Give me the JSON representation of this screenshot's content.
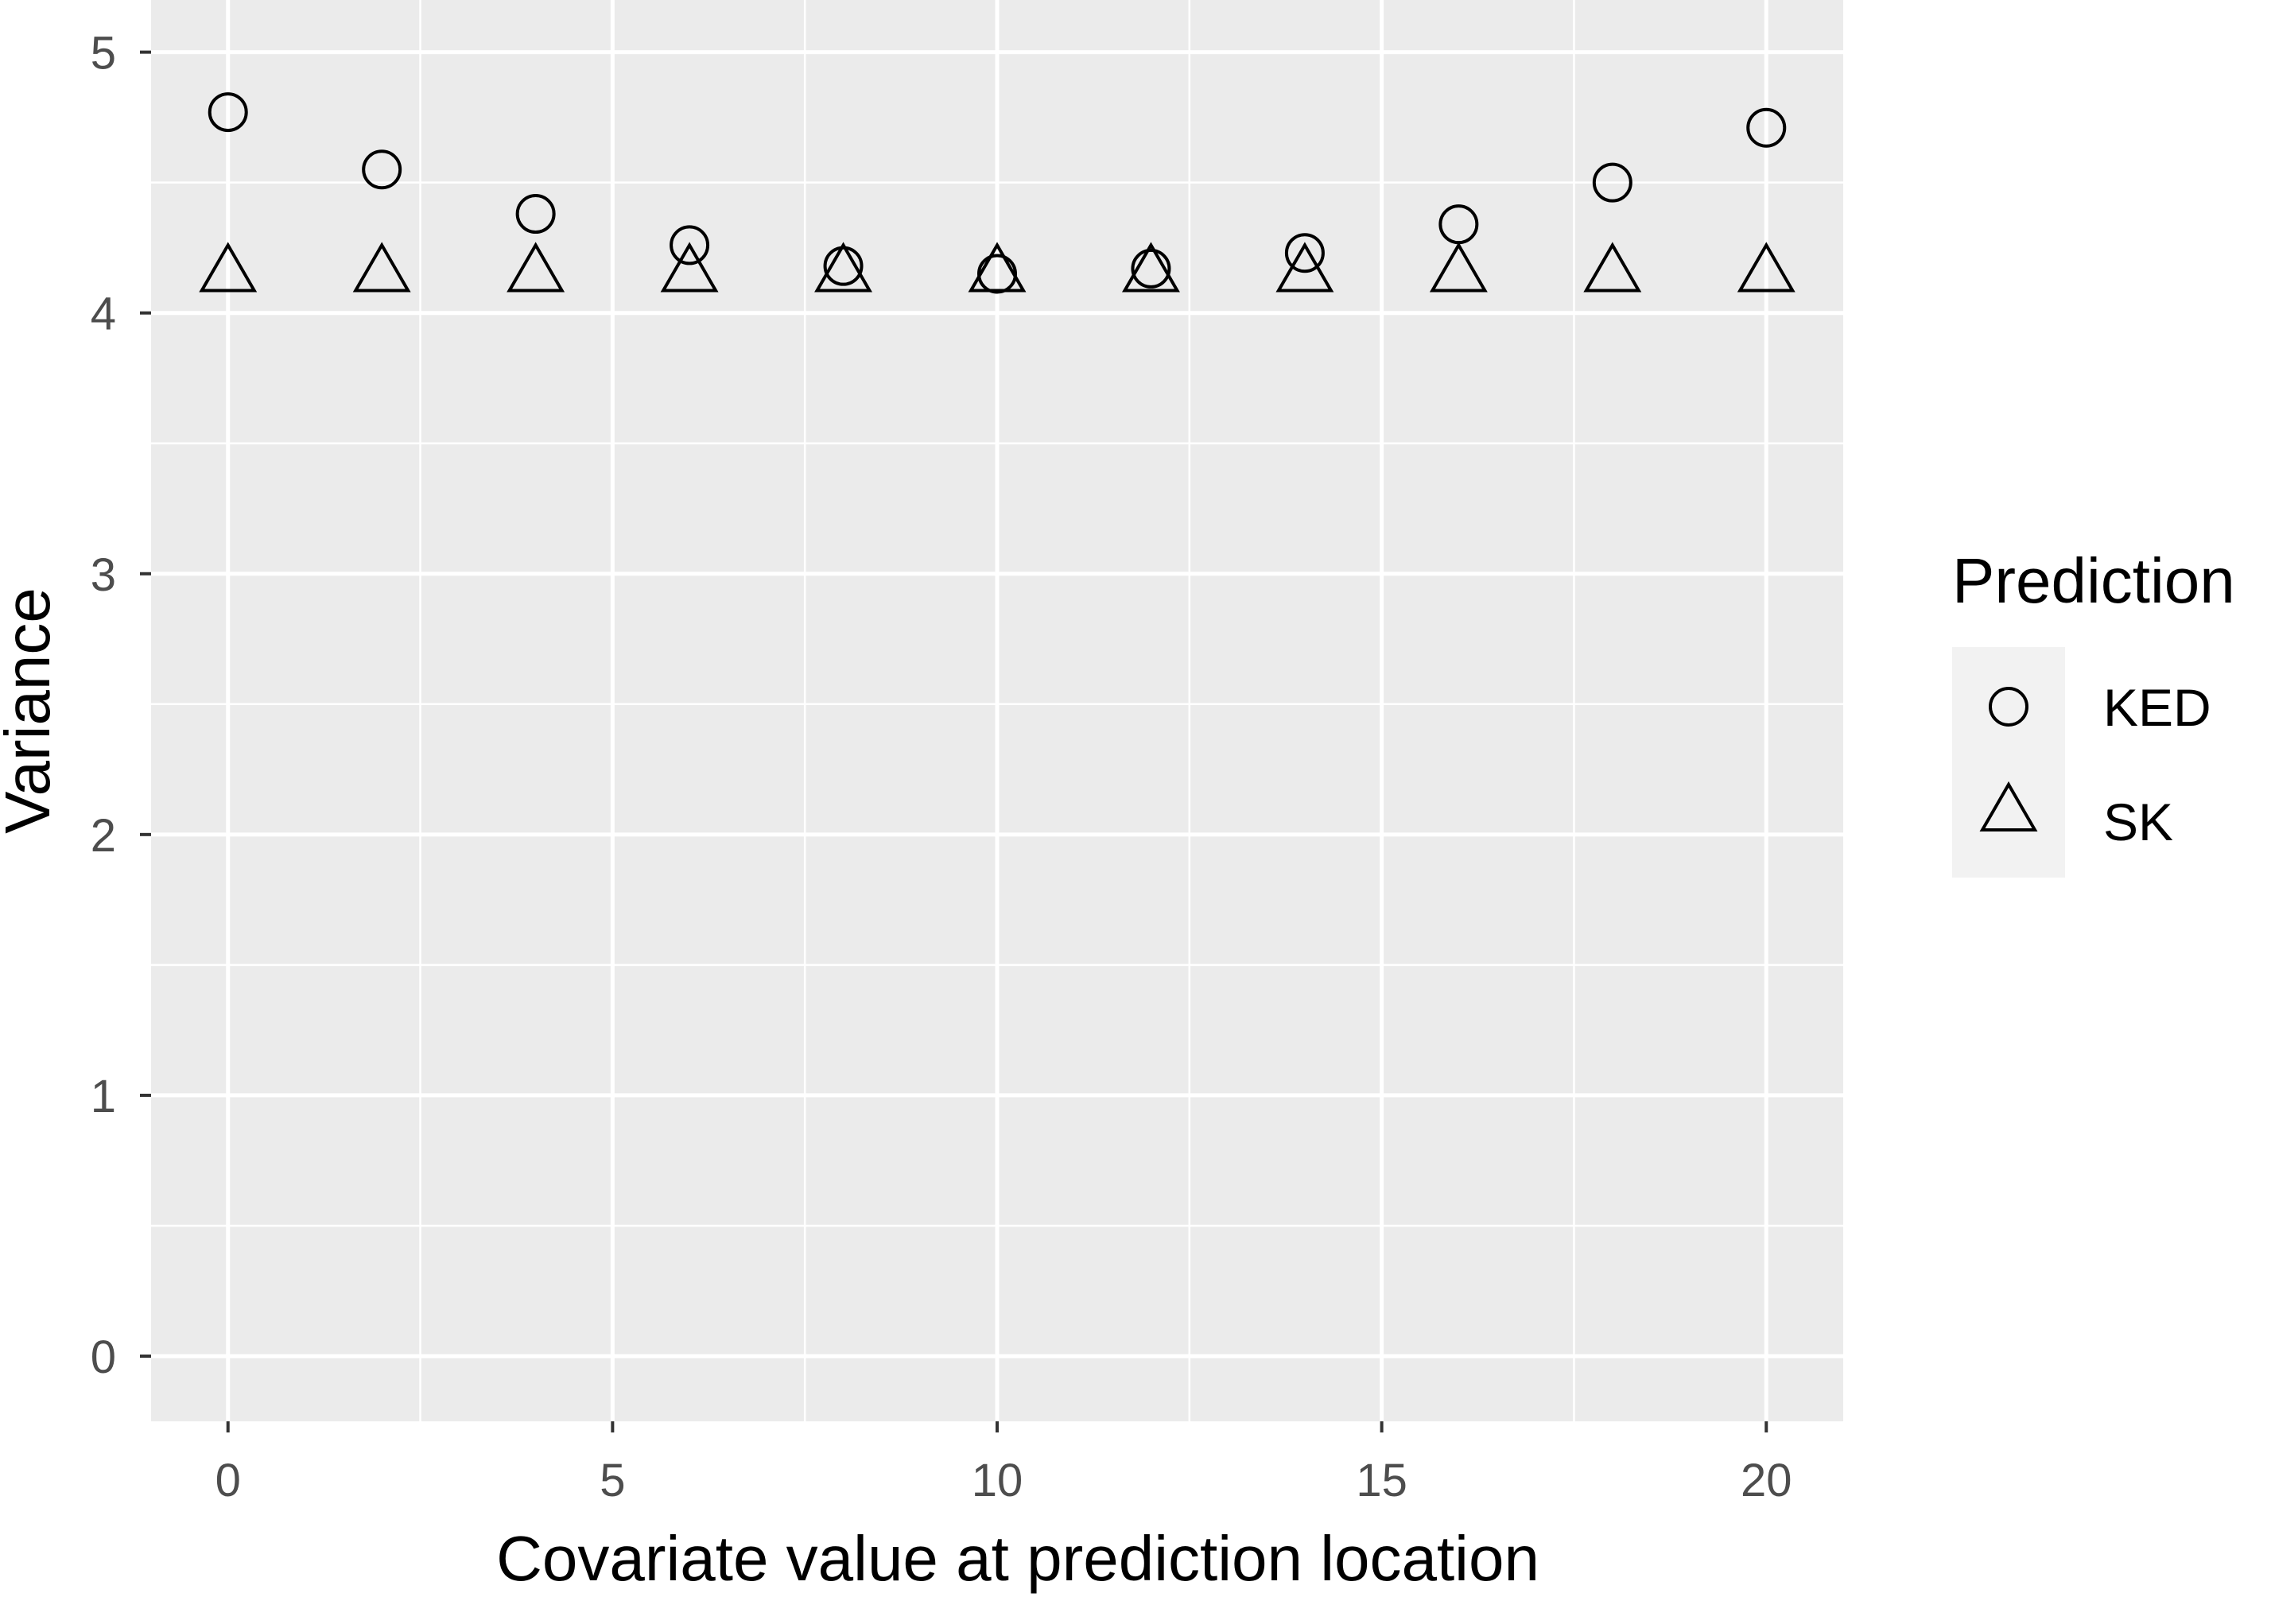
{
  "chart_data": {
    "type": "scatter",
    "title": "",
    "xlabel": "Covariate value at prediction location",
    "ylabel": "Variance",
    "xlim": [
      -1,
      21
    ],
    "ylim": [
      -0.25,
      5.2
    ],
    "x_ticks": [
      0,
      5,
      10,
      15,
      20
    ],
    "x_tick_labels": [
      "0",
      "5",
      "10",
      "15",
      "20"
    ],
    "y_ticks": [
      0,
      1,
      2,
      3,
      4,
      5
    ],
    "y_tick_labels": [
      "0",
      "1",
      "2",
      "3",
      "4",
      "5"
    ],
    "grid": true,
    "legend": {
      "title": "Prediction",
      "placement": "right"
    },
    "x": [
      0,
      2,
      4,
      6,
      8,
      10,
      12,
      14,
      16,
      18,
      20
    ],
    "series": [
      {
        "name": "KED",
        "shape": "circle",
        "values": [
          4.77,
          4.55,
          4.38,
          4.26,
          4.18,
          4.15,
          4.17,
          4.23,
          4.34,
          4.5,
          4.71
        ]
      },
      {
        "name": "SK",
        "shape": "triangle",
        "values": [
          4.15,
          4.15,
          4.15,
          4.15,
          4.15,
          4.15,
          4.15,
          4.15,
          4.15,
          4.15,
          4.15
        ]
      }
    ],
    "colors": {
      "panel": "#ebebeb",
      "grid": "#ffffff",
      "marker": "#000000",
      "tick_text": "#4d4d4d"
    }
  }
}
